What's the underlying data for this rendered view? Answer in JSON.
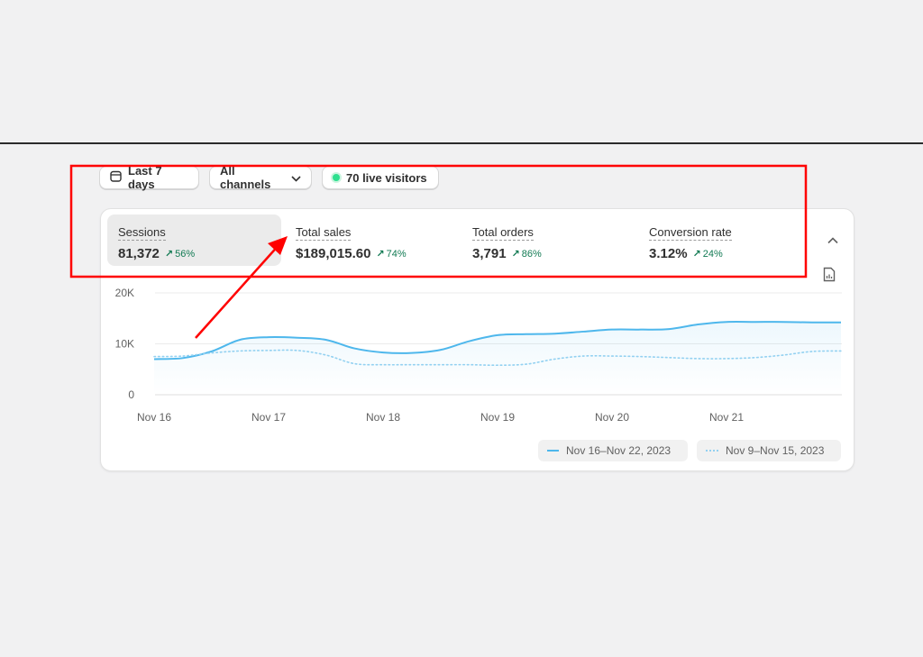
{
  "filters": {
    "date_range": "Last 7 days",
    "channels": "All channels",
    "live_visitors": "70 live visitors"
  },
  "metrics": [
    {
      "label": "Sessions",
      "value": "81,372",
      "change": "56%"
    },
    {
      "label": "Total sales",
      "value": "$189,015.60",
      "change": "74%"
    },
    {
      "label": "Total orders",
      "value": "3,791",
      "change": "86%"
    },
    {
      "label": "Conversion rate",
      "value": "3.12%",
      "change": "24%"
    }
  ],
  "legend": {
    "current": "Nov 16–Nov 22, 2023",
    "previous": "Nov 9–Nov 15, 2023"
  },
  "colors": {
    "current_series": "#4eb7ec",
    "previous_series": "#93d1f1",
    "positive_change": "#117a53",
    "live_dot": "#2ee08f",
    "annotation": "#ff0000"
  },
  "icons": [
    "calendar-icon",
    "chevron-down-icon",
    "arrow-up-right-icon",
    "chevron-up-icon",
    "report-icon"
  ],
  "chart_data": {
    "type": "line",
    "x_tick_labels": [
      "Nov 16",
      "Nov 17",
      "Nov 18",
      "Nov 19",
      "Nov 20",
      "Nov 21"
    ],
    "y_tick_labels": [
      "20K",
      "10K",
      "0"
    ],
    "ylim": [
      0,
      20000
    ],
    "grid": true,
    "legend_position": "bottom-right",
    "series": [
      {
        "name": "Nov 16–Nov 22, 2023",
        "style": "solid",
        "x": [
          0,
          0.25,
          0.5,
          0.75,
          1,
          1.25,
          1.5,
          1.75,
          2,
          2.25,
          2.5,
          2.75,
          3,
          3.25,
          3.5,
          3.75,
          4,
          4.25,
          4.5,
          4.75,
          5,
          5.25,
          5.5,
          5.75,
          6
        ],
        "values": [
          7000,
          7200,
          8500,
          10800,
          11300,
          11200,
          10800,
          9100,
          8300,
          8200,
          8800,
          10500,
          11700,
          11900,
          12000,
          12400,
          12800,
          12800,
          12900,
          13800,
          14300,
          14300,
          14300,
          14200,
          14200
        ]
      },
      {
        "name": "Nov 9–Nov 15, 2023",
        "style": "dotted",
        "x": [
          0,
          0.25,
          0.5,
          0.75,
          1,
          1.25,
          1.5,
          1.75,
          2,
          2.25,
          2.5,
          2.75,
          3,
          3.25,
          3.5,
          3.75,
          4,
          4.25,
          4.5,
          4.75,
          5,
          5.25,
          5.5,
          5.75,
          6
        ],
        "values": [
          7500,
          7600,
          8200,
          8600,
          8700,
          8700,
          7800,
          6100,
          5900,
          5900,
          5900,
          5900,
          5800,
          6000,
          7000,
          7600,
          7600,
          7500,
          7300,
          7100,
          7100,
          7300,
          7800,
          8500,
          8600
        ]
      }
    ]
  }
}
